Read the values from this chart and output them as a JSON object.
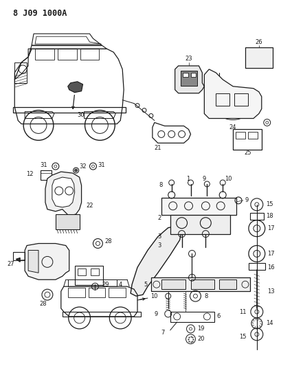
{
  "title": "8 J09 1000A",
  "bg_color": "#ffffff",
  "fig_width": 4.09,
  "fig_height": 5.33,
  "dpi": 100,
  "line_color": "#1a1a1a",
  "label_fs": 6.0,
  "title_fs": 8.5
}
